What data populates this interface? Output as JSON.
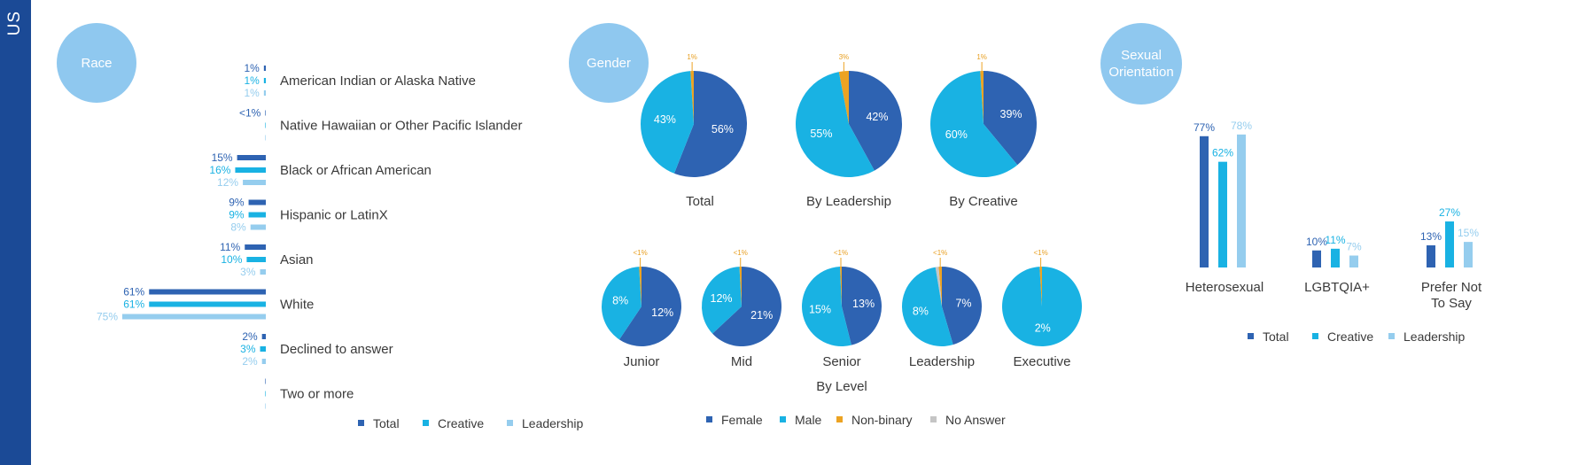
{
  "sidebar": {
    "label": "US"
  },
  "colors": {
    "total": "#2e63b2",
    "creative": "#19b2e3",
    "leadership": "#95cdee",
    "female": "#2e63b2",
    "male": "#19b2e3",
    "nonbinary": "#eca323",
    "noanswer": "#c5c5c5",
    "bubble": "#8fc8ef",
    "sidebar": "#1b4a96"
  },
  "headers": {
    "race": "Race",
    "gender": "Gender",
    "sexual": "Sexual\nOrientation"
  },
  "chart_data": [
    {
      "id": "race",
      "type": "bar",
      "orientation": "horizontal",
      "title": "Race",
      "categories": [
        "American Indian or Alaska Native",
        "Native Hawaiian or Other Pacific Islander",
        "Black or African American",
        "Hispanic or LatinX",
        "Asian",
        "White",
        "Declined to answer",
        "Two or more"
      ],
      "series": [
        {
          "name": "Total",
          "values": [
            1,
            0.3,
            15,
            9,
            11,
            61,
            2,
            0
          ],
          "labels": [
            "1%",
            "<1%",
            "15%",
            "9%",
            "11%",
            "61%",
            "2%",
            ""
          ]
        },
        {
          "name": "Creative",
          "values": [
            1,
            0,
            16,
            9,
            10,
            61,
            3,
            0
          ],
          "labels": [
            "1%",
            "",
            "16%",
            "9%",
            "10%",
            "61%",
            "3%",
            ""
          ]
        },
        {
          "name": "Leadership",
          "values": [
            1,
            0,
            12,
            8,
            3,
            75,
            2,
            0
          ],
          "labels": [
            "1%",
            "",
            "12%",
            "8%",
            "3%",
            "75%",
            "2%",
            ""
          ]
        }
      ],
      "legend": [
        "Total",
        "Creative",
        "Leadership"
      ],
      "xlim": [
        0,
        75
      ]
    },
    {
      "id": "gender_top",
      "type": "pie",
      "title": "Gender",
      "legend": [
        "Female",
        "Male",
        "Non-binary",
        "No Answer"
      ],
      "pies": [
        {
          "caption": "Total",
          "slices": [
            {
              "name": "Female",
              "value": 56,
              "label": "56%"
            },
            {
              "name": "Male",
              "value": 43,
              "label": "43%"
            },
            {
              "name": "Non-binary",
              "value": 1,
              "label": "1%"
            }
          ]
        },
        {
          "caption": "By Leadership",
          "slices": [
            {
              "name": "Female",
              "value": 42,
              "label": "42%"
            },
            {
              "name": "Male",
              "value": 55,
              "label": "55%"
            },
            {
              "name": "Non-binary",
              "value": 3,
              "label": "3%"
            }
          ]
        },
        {
          "caption": "By Creative",
          "slices": [
            {
              "name": "Female",
              "value": 39,
              "label": "39%"
            },
            {
              "name": "Male",
              "value": 60,
              "label": "60%"
            },
            {
              "name": "Non-binary",
              "value": 1,
              "label": "1%"
            }
          ]
        }
      ]
    },
    {
      "id": "gender_level",
      "type": "pie",
      "title": "By Level",
      "pies": [
        {
          "caption": "Junior",
          "slices": [
            {
              "name": "Female",
              "value": 12,
              "label": "12%"
            },
            {
              "name": "Male",
              "value": 8,
              "label": "8%"
            },
            {
              "name": "Non-binary",
              "value": 0.2,
              "label": "<1%"
            }
          ]
        },
        {
          "caption": "Mid",
          "slices": [
            {
              "name": "Female",
              "value": 21,
              "label": "21%"
            },
            {
              "name": "Male",
              "value": 12,
              "label": "12%"
            },
            {
              "name": "Non-binary",
              "value": 0.3,
              "label": "<1%"
            }
          ]
        },
        {
          "caption": "Senior",
          "slices": [
            {
              "name": "Female",
              "value": 13,
              "label": "13%"
            },
            {
              "name": "Male",
              "value": 15,
              "label": "15%"
            },
            {
              "name": "Non-binary",
              "value": 0.2,
              "label": "<1%"
            }
          ]
        },
        {
          "caption": "Leadership",
          "slices": [
            {
              "name": "Female",
              "value": 7,
              "label": "7%"
            },
            {
              "name": "Male",
              "value": 8,
              "label": "8%"
            },
            {
              "name": "Non-binary",
              "value": 0.2,
              "label": "<1%"
            },
            {
              "name": "No Answer",
              "value": 0.2,
              "label": ""
            }
          ]
        },
        {
          "caption": "Executive",
          "slices": [
            {
              "name": "Female",
              "value": 0,
              "label": ""
            },
            {
              "name": "Male",
              "value": 2,
              "label": "2%"
            },
            {
              "name": "Non-binary",
              "value": 0.02,
              "label": "<1%"
            }
          ]
        }
      ]
    },
    {
      "id": "sexual_orientation",
      "type": "bar",
      "orientation": "vertical",
      "title": "Sexual Orientation",
      "categories": [
        "Heterosexual",
        "LGBTQIA+",
        "Prefer Not\nTo Say"
      ],
      "series": [
        {
          "name": "Total",
          "values": [
            77,
            10,
            13
          ],
          "labels": [
            "77%",
            "10%",
            "13%"
          ]
        },
        {
          "name": "Creative",
          "values": [
            62,
            11,
            27
          ],
          "labels": [
            "62%",
            "11%",
            "27%"
          ]
        },
        {
          "name": "Leadership",
          "values": [
            78,
            7,
            15
          ],
          "labels": [
            "78%",
            "7%",
            "15%"
          ]
        }
      ],
      "legend": [
        "Total",
        "Creative",
        "Leadership"
      ],
      "ylim": [
        0,
        80
      ]
    }
  ]
}
